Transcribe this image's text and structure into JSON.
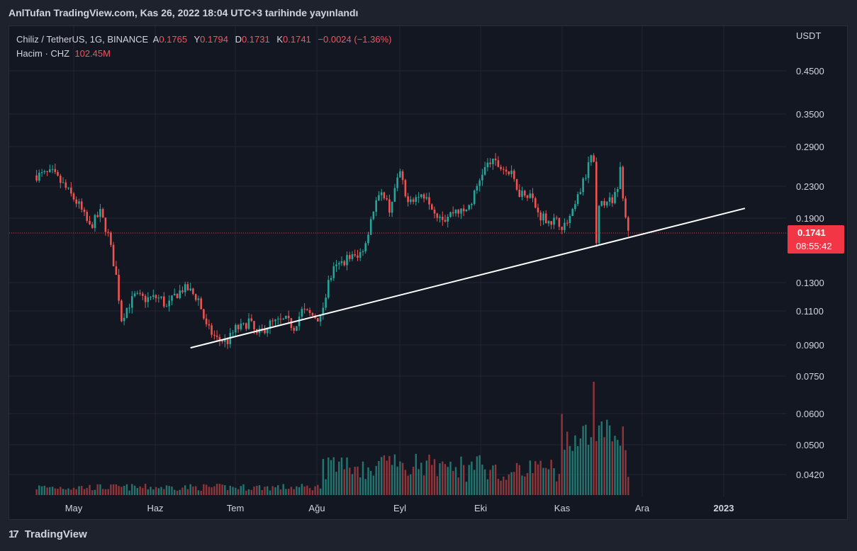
{
  "header": {
    "publish_line": "AnlTufan TradingView.com, Kas 26, 2022 18:04 UTC+3 tarihinde yayınlandı"
  },
  "legend": {
    "symbol": "Chiliz / TetherUS, 1G, BINANCE",
    "open_label": "A",
    "open": "0.1765",
    "high_label": "Y",
    "high": "0.1794",
    "low_label": "D",
    "low": "0.1731",
    "close_label": "K",
    "close": "0.1741",
    "change": "−0.0024 (−1.36%)",
    "volume_label": "Hacim · CHZ",
    "volume": "102.45M"
  },
  "footer": {
    "brand": "TradingView",
    "logo_icon": "tradingview-logo-icon"
  },
  "colors": {
    "background": "#131722",
    "up": "#26a69a",
    "down": "#ef5350",
    "up_volume": "#22766f",
    "down_volume": "#91353a",
    "grid": "#232632",
    "trendline": "#ffffff",
    "price_tag": "#f23645"
  },
  "chart_data": {
    "type": "candlestick",
    "symbol": "Chiliz / TetherUS",
    "interval": "1G",
    "exchange": "BINANCE",
    "price_unit": "USDT",
    "price_scale": "log",
    "y_ticks": [
      "0.4500",
      "0.3500",
      "0.2900",
      "0.2300",
      "0.1900",
      "0.1300",
      "0.1100",
      "0.0900",
      "0.0750",
      "0.0600",
      "0.0500",
      "0.0420"
    ],
    "x_ticks": [
      "May",
      "Haz",
      "Tem",
      "Ağu",
      "Eyl",
      "Eki",
      "Kas",
      "Ara",
      "2023"
    ],
    "last_price": "0.1741",
    "countdown": "08:55:42",
    "grid": true,
    "price_path": [
      [
        "2022-04-17",
        0.245
      ],
      [
        "2022-04-23",
        0.248
      ],
      [
        "2022-04-27",
        0.232
      ],
      [
        "2022-05-03",
        0.205
      ],
      [
        "2022-05-07",
        0.18
      ],
      [
        "2022-05-11",
        0.196
      ],
      [
        "2022-05-14",
        0.172
      ],
      [
        "2022-05-17",
        0.135
      ],
      [
        "2022-05-19",
        0.105
      ],
      [
        "2022-05-21",
        0.112
      ],
      [
        "2022-05-24",
        0.12
      ],
      [
        "2022-05-28",
        0.118
      ],
      [
        "2022-06-01",
        0.119
      ],
      [
        "2022-06-03",
        0.118
      ],
      [
        "2022-06-05",
        0.112
      ],
      [
        "2022-06-08",
        0.12
      ],
      [
        "2022-06-11",
        0.125
      ],
      [
        "2022-06-13",
        0.125
      ],
      [
        "2022-06-17",
        0.118
      ],
      [
        "2022-06-20",
        0.1
      ],
      [
        "2022-06-24",
        0.093
      ],
      [
        "2022-06-28",
        0.092
      ],
      [
        "2022-07-01",
        0.099
      ],
      [
        "2022-07-04",
        0.1
      ],
      [
        "2022-07-06",
        0.104
      ],
      [
        "2022-07-09",
        0.095
      ],
      [
        "2022-07-14",
        0.102
      ],
      [
        "2022-07-20",
        0.104
      ],
      [
        "2022-07-23",
        0.1
      ],
      [
        "2022-07-26",
        0.11
      ],
      [
        "2022-07-30",
        0.107
      ],
      [
        "2022-08-02",
        0.105
      ],
      [
        "2022-08-05",
        0.13
      ],
      [
        "2022-08-07",
        0.14
      ],
      [
        "2022-08-10",
        0.146
      ],
      [
        "2022-08-13",
        0.152
      ],
      [
        "2022-08-16",
        0.15
      ],
      [
        "2022-08-19",
        0.165
      ],
      [
        "2022-08-21",
        0.19
      ],
      [
        "2022-08-23",
        0.21
      ],
      [
        "2022-08-26",
        0.22
      ],
      [
        "2022-08-28",
        0.2
      ],
      [
        "2022-08-30",
        0.225
      ],
      [
        "2022-09-01",
        0.25
      ],
      [
        "2022-09-03",
        0.215
      ],
      [
        "2022-09-07",
        0.215
      ],
      [
        "2022-09-11",
        0.22
      ],
      [
        "2022-09-14",
        0.198
      ],
      [
        "2022-09-18",
        0.19
      ],
      [
        "2022-09-22",
        0.2
      ],
      [
        "2022-09-25",
        0.196
      ],
      [
        "2022-09-28",
        0.21
      ],
      [
        "2022-10-02",
        0.25
      ],
      [
        "2022-10-05",
        0.265
      ],
      [
        "2022-10-07",
        0.262
      ],
      [
        "2022-10-10",
        0.255
      ],
      [
        "2022-10-13",
        0.245
      ],
      [
        "2022-10-16",
        0.222
      ],
      [
        "2022-10-20",
        0.22
      ],
      [
        "2022-10-23",
        0.195
      ],
      [
        "2022-10-27",
        0.188
      ],
      [
        "2022-10-31",
        0.185
      ],
      [
        "2022-11-02",
        0.18
      ],
      [
        "2022-11-05",
        0.195
      ],
      [
        "2022-11-08",
        0.225
      ],
      [
        "2022-11-10",
        0.245
      ],
      [
        "2022-11-12",
        0.275
      ],
      [
        "2022-11-13",
        0.26
      ],
      [
        "2022-11-14",
        0.16
      ],
      [
        "2022-11-15",
        0.2
      ],
      [
        "2022-11-18",
        0.215
      ],
      [
        "2022-11-20",
        0.205
      ],
      [
        "2022-11-22",
        0.23
      ],
      [
        "2022-11-23",
        0.255
      ],
      [
        "2022-11-24",
        0.22
      ],
      [
        "2022-11-26",
        0.175
      ]
    ],
    "trendline": {
      "from": [
        "2022-06-14",
        0.0885
      ],
      "to": [
        "2023-01-09",
        0.2015
      ]
    },
    "volume_spike": {
      "date": "2022-11-13",
      "note": "largest volume bar"
    }
  }
}
